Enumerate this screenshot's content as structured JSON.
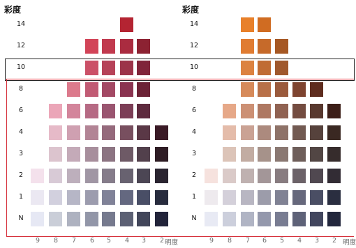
{
  "axes": {
    "y_title": "彩度",
    "x_title": "明度",
    "y_levels": [
      "14",
      "12",
      "10",
      "8",
      "6",
      "4",
      "3",
      "2",
      "1",
      "N"
    ],
    "x_levels": [
      "9",
      "8",
      "7",
      "6",
      "5",
      "4",
      "3",
      "2"
    ]
  },
  "charts": [
    {
      "id": "red-purple",
      "rows": [
        {
          "chroma": "14",
          "cells": [
            null,
            null,
            null,
            null,
            null,
            "#b42432",
            null,
            null
          ]
        },
        {
          "chroma": "12",
          "cells": [
            null,
            null,
            null,
            "#d24458",
            "#c13a4e",
            "#aa2c40",
            "#8c2232",
            null
          ]
        },
        {
          "chroma": "10",
          "cells": [
            null,
            null,
            null,
            "#cb5067",
            "#b64258",
            "#9c3349",
            "#80243a",
            null
          ]
        },
        {
          "chroma": "8",
          "cells": [
            null,
            null,
            "#dc7a8c",
            "#c15b74",
            "#a34964",
            "#8a3350",
            "#6c2236",
            null
          ]
        },
        {
          "chroma": "6",
          "cells": [
            null,
            "#eba6b8",
            "#d3859b",
            "#b66a84",
            "#9a5570",
            "#7c3e56",
            "#5e2a3e",
            null
          ]
        },
        {
          "chroma": "4",
          "cells": [
            null,
            "#e6bac8",
            "#cfa0b1",
            "#b28495",
            "#956a7c",
            "#784f5f",
            "#5a3846",
            "#3a1a26"
          ]
        },
        {
          "chroma": "3",
          "cells": [
            null,
            "#dcc4ce",
            "#c4aab8",
            "#a78e9c",
            "#8c7482",
            "#6e5a66",
            "#52404c",
            "#2e1c24"
          ]
        },
        {
          "chroma": "2",
          "cells": [
            "#f4e1ec",
            "#d8cad6",
            "#bdafbc",
            "#a096a4",
            "#857c8a",
            "#686270",
            "#4c4654",
            "#2a2430"
          ]
        },
        {
          "chroma": "1",
          "cells": [
            "#ebe8f2",
            "#d2d0de",
            "#b6b6c6",
            "#9c9cae",
            "#808298",
            "#646880",
            "#494e66",
            "#282c3e"
          ]
        },
        {
          "chroma": "N",
          "cells": [
            "#e6e8f4",
            "#caced8",
            "#aeb2c0",
            "#9296a8",
            "#767a8e",
            "#5c6074",
            "#42465a",
            "#22243a"
          ]
        }
      ]
    },
    {
      "id": "yellow-red",
      "rows": [
        {
          "chroma": "14",
          "cells": [
            null,
            null,
            "#e8802a",
            "#d06c22",
            null,
            null,
            null,
            null
          ]
        },
        {
          "chroma": "12",
          "cells": [
            null,
            null,
            "#e07c32",
            "#c66a2a",
            "#a65824",
            null,
            null,
            null
          ]
        },
        {
          "chroma": "10",
          "cells": [
            null,
            null,
            "#dc8240",
            "#c06c34",
            "#a0582c",
            null,
            null,
            null
          ]
        },
        {
          "chroma": "8",
          "cells": [
            null,
            null,
            "#d68a5a",
            "#b87048",
            "#9a5a3c",
            "#7e4430",
            "#5e2c1e",
            null
          ]
        },
        {
          "chroma": "6",
          "cells": [
            null,
            "#e6a888",
            "#cc9074",
            "#ae7862",
            "#906252",
            "#744c40",
            "#58382e",
            "#3c1e18"
          ]
        },
        {
          "chroma": "4",
          "cells": [
            null,
            "#e4bcaa",
            "#caa294",
            "#ac8a7e",
            "#8e7268",
            "#725a52",
            "#56423c",
            "#3a2822"
          ]
        },
        {
          "chroma": "3",
          "cells": [
            null,
            "#dcc4b8",
            "#c2aca2",
            "#a6928a",
            "#8a7872",
            "#6e5e5a",
            "#524644",
            "#362c2c"
          ]
        },
        {
          "chroma": "2",
          "cells": [
            "#f6e2de",
            "#dacac8",
            "#bfb1b0",
            "#a39698",
            "#887c80",
            "#6c6268",
            "#504850",
            "#322c34"
          ]
        },
        {
          "chroma": "1",
          "cells": [
            "#eeeaee",
            "#d4d0da",
            "#b8b6c2",
            "#9c9caa",
            "#808294",
            "#66687c",
            "#4a4e64",
            "#2a2e40"
          ]
        },
        {
          "chroma": "N",
          "cells": [
            "#e8eaf4",
            "#cccfdc",
            "#b0b4c4",
            "#9498ac",
            "#787c92",
            "#5e6278",
            "#42465e",
            "#22263c"
          ]
        }
      ]
    }
  ]
}
